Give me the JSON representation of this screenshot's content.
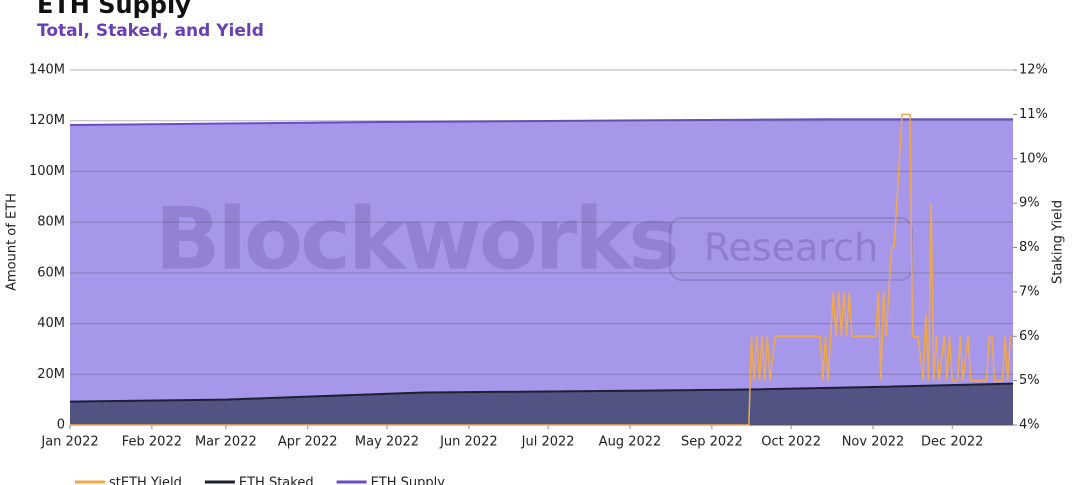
{
  "chart_data": {
    "type": "area-line",
    "title": "ETH Supply",
    "subtitle": "Total, Staked, and Yield",
    "watermark": [
      "Blockworks",
      "Research"
    ],
    "ylabel": "Amount of ETH",
    "y2label": "Staking Yield",
    "xlim": [
      "2022-01-01",
      "2022-12-24"
    ],
    "xticks": [
      {
        "value": "2022-01-01",
        "label": "Jan 2022"
      },
      {
        "value": "2022-02-01",
        "label": "Feb 2022"
      },
      {
        "value": "2022-03-01",
        "label": "Mar 2022"
      },
      {
        "value": "2022-04-01",
        "label": "Apr 2022"
      },
      {
        "value": "2022-05-01",
        "label": "May 2022"
      },
      {
        "value": "2022-06-01",
        "label": "Jun 2022"
      },
      {
        "value": "2022-07-01",
        "label": "Jul 2022"
      },
      {
        "value": "2022-08-01",
        "label": "Aug 2022"
      },
      {
        "value": "2022-09-01",
        "label": "Sep 2022"
      },
      {
        "value": "2022-10-01",
        "label": "Oct 2022"
      },
      {
        "value": "2022-11-01",
        "label": "Nov 2022"
      },
      {
        "value": "2022-12-01",
        "label": "Dec 2022"
      }
    ],
    "ylim": [
      0,
      140000000
    ],
    "yticks": [
      0,
      {
        "value": 20000000,
        "label": "20M"
      },
      {
        "value": 40000000,
        "label": "40M"
      },
      {
        "value": 60000000,
        "label": "60M"
      },
      {
        "value": 80000000,
        "label": "80M"
      },
      {
        "value": 100000000,
        "label": "100M"
      },
      {
        "value": 120000000,
        "label": "120M"
      },
      {
        "value": 140000000,
        "label": "140M"
      }
    ],
    "y2lim": [
      4,
      12
    ],
    "y2ticks": [
      {
        "value": 4,
        "label": "4%"
      },
      {
        "value": 5,
        "label": "5%"
      },
      {
        "value": 6,
        "label": "6%"
      },
      {
        "value": 7,
        "label": "7%"
      },
      {
        "value": 8,
        "label": "8%"
      },
      {
        "value": 9,
        "label": "9%"
      },
      {
        "value": 10,
        "label": "10%"
      },
      {
        "value": 11,
        "label": "11%"
      },
      {
        "value": 12,
        "label": "12%"
      }
    ],
    "grid": true,
    "series": [
      {
        "name": "ETH Supply",
        "kind": "area",
        "color": "#6a4bc8",
        "fill": "#a797ea",
        "x": [
          "2022-01-01",
          "2022-03-01",
          "2022-05-01",
          "2022-07-01",
          "2022-09-15",
          "2022-10-15",
          "2022-12-24"
        ],
        "values": [
          118300000,
          118900000,
          119500000,
          119900000,
          120400000,
          120600000,
          120600000
        ]
      },
      {
        "name": "ETH Staked",
        "kind": "area",
        "color": "#1d1f33",
        "fill": "#515482",
        "x": [
          "2022-01-01",
          "2022-03-01",
          "2022-04-01",
          "2022-05-15",
          "2022-08-01",
          "2022-09-15",
          "2022-11-01",
          "2022-12-24"
        ],
        "values": [
          9200000,
          10000000,
          11200000,
          12800000,
          13500000,
          14000000,
          15000000,
          16300000
        ]
      },
      {
        "name": "stETH Yield",
        "kind": "line",
        "axis": "y2",
        "color": "#f0a94a",
        "x": [
          "2022-01-01",
          "2022-09-15",
          "2022-09-16",
          "2022-09-17",
          "2022-09-18",
          "2022-09-19",
          "2022-09-20",
          "2022-09-21",
          "2022-09-22",
          "2022-09-23",
          "2022-09-25",
          "2022-10-12",
          "2022-10-13",
          "2022-10-14",
          "2022-10-15",
          "2022-10-16",
          "2022-10-17",
          "2022-10-18",
          "2022-10-19",
          "2022-10-20",
          "2022-10-21",
          "2022-10-22",
          "2022-10-23",
          "2022-10-24",
          "2022-11-02",
          "2022-11-03",
          "2022-11-04",
          "2022-11-05",
          "2022-11-06",
          "2022-11-08",
          "2022-11-09",
          "2022-11-12",
          "2022-11-15",
          "2022-11-16",
          "2022-11-18",
          "2022-11-20",
          "2022-11-21",
          "2022-11-22",
          "2022-11-23",
          "2022-11-24",
          "2022-11-25",
          "2022-11-26",
          "2022-11-28",
          "2022-11-29",
          "2022-11-30",
          "2022-12-01",
          "2022-12-03",
          "2022-12-04",
          "2022-12-05",
          "2022-12-07",
          "2022-12-08",
          "2022-12-14",
          "2022-12-15",
          "2022-12-16",
          "2022-12-17",
          "2022-12-20",
          "2022-12-21",
          "2022-12-22",
          "2022-12-23"
        ],
        "values": [
          4,
          4,
          6,
          5,
          6,
          5,
          6,
          5,
          6,
          5,
          6,
          6,
          5,
          6,
          5,
          6,
          7,
          6,
          7,
          6,
          7,
          6,
          7,
          6,
          6,
          7,
          5,
          7,
          6,
          8,
          8,
          11,
          11,
          6,
          6,
          5,
          6.5,
          5,
          9,
          5,
          6,
          5,
          6,
          5,
          6,
          5,
          5,
          6,
          5,
          6,
          5,
          5,
          6,
          6,
          5,
          5,
          6,
          5,
          6
        ]
      }
    ],
    "legend": [
      "stETH Yield",
      "ETH Staked",
      "ETH Supply"
    ]
  }
}
